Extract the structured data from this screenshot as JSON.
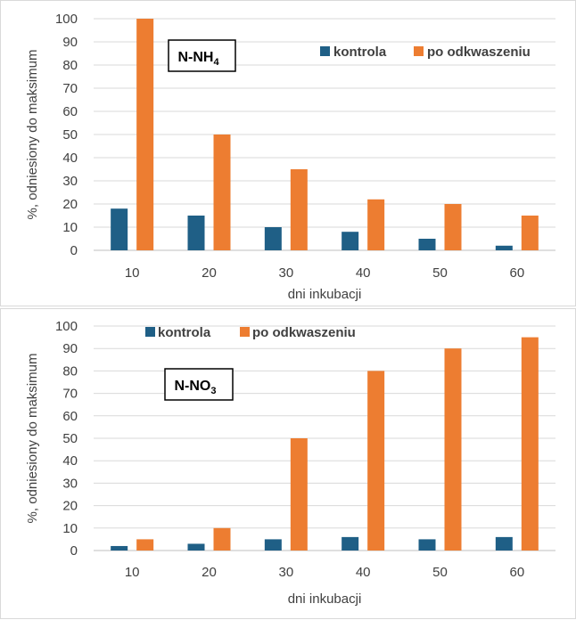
{
  "chart_data": [
    {
      "type": "bar",
      "title_box": {
        "base": "N-NH",
        "sub": "4"
      },
      "categories": [
        "10",
        "20",
        "30",
        "40",
        "50",
        "60"
      ],
      "series": [
        {
          "name": "kontrola",
          "color": "#1f5f86",
          "values": [
            18,
            15,
            10,
            8,
            5,
            2
          ]
        },
        {
          "name": "po odkwaszeniu",
          "color": "#ed7d31",
          "values": [
            100,
            50,
            35,
            22,
            20,
            15
          ]
        }
      ],
      "ylabel": "%, odniesiony do maksimum",
      "xlabel": "dni inkubacji",
      "ylim": [
        0,
        100
      ],
      "yticks": [
        "0",
        "10",
        "20",
        "30",
        "40",
        "50",
        "60",
        "70",
        "80",
        "90",
        "100"
      ],
      "grid": true,
      "legend_position": "top-right"
    },
    {
      "type": "bar",
      "title_box": {
        "base": "N-NO",
        "sub": "3"
      },
      "categories": [
        "10",
        "20",
        "30",
        "40",
        "50",
        "60"
      ],
      "series": [
        {
          "name": "kontrola",
          "color": "#1f5f86",
          "values": [
            2,
            3,
            5,
            6,
            5,
            6
          ]
        },
        {
          "name": "po odkwaszeniu",
          "color": "#ed7d31",
          "values": [
            5,
            10,
            50,
            80,
            90,
            95
          ]
        }
      ],
      "ylabel": "%, odniesiony do maksimum",
      "xlabel": "dni inkubacji",
      "ylim": [
        0,
        100
      ],
      "yticks": [
        "0",
        "10",
        "20",
        "30",
        "40",
        "50",
        "60",
        "70",
        "80",
        "90",
        "100"
      ],
      "grid": true,
      "legend_position": "top-left"
    }
  ]
}
